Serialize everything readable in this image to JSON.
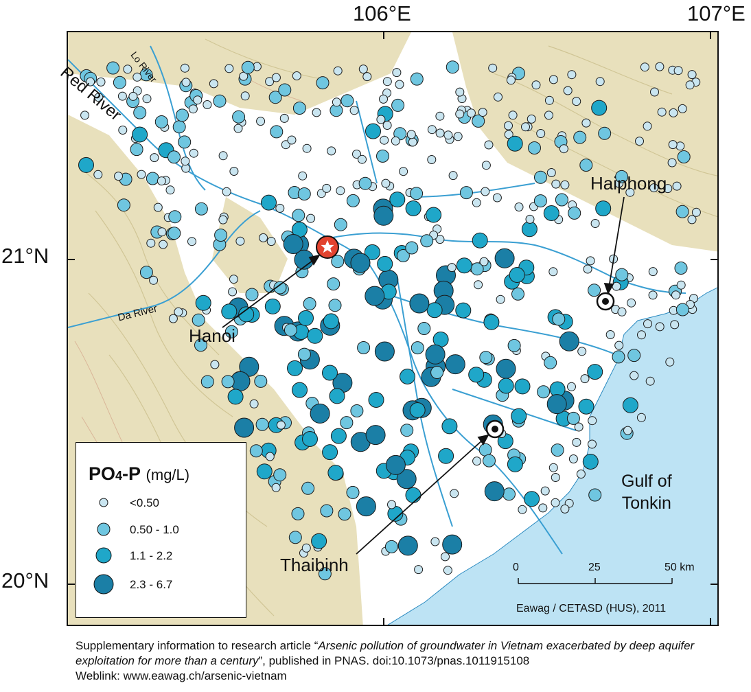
{
  "axes": {
    "lon_labels": [
      "106°E",
      "107°E"
    ],
    "lat_labels": [
      "21°N",
      "20°N"
    ]
  },
  "rivers": {
    "red": "Red River",
    "lo": "Lo River",
    "da": "Da River"
  },
  "cities": {
    "hanoi": "Hanoi",
    "haiphong": "Haiphong",
    "thaibinh": "Thaibinh"
  },
  "sea": {
    "line1": "Gulf of",
    "line2": "Tonkin"
  },
  "legend": {
    "title_main": "PO",
    "title_sub": "4",
    "title_tail": "-P",
    "unit": "(mg/L)",
    "classes": [
      {
        "label": "<0.50",
        "color": "#c9e5f0"
      },
      {
        "label": "0.50 - 1.0",
        "color": "#6fc6e0"
      },
      {
        "label": "1.1 - 2.2",
        "color": "#1fa7c9"
      },
      {
        "label": "2.3 - 6.7",
        "color": "#1b7fa6"
      }
    ]
  },
  "scale_bar": {
    "labels": [
      "0",
      "25",
      "50 km"
    ]
  },
  "credit": "Eawag / CETASD (HUS), 2011",
  "caption": {
    "pre": "Supplementary information to research article “",
    "title": "Arsenic pollution of groundwater in Vietnam exacerbated by deep aquifer exploitation for more than a century",
    "post": "”, published in PNAS. doi:10.1073/pnas.1011915108",
    "weblink": "Weblink: www.eawag.ch/arsenic-vietnam"
  },
  "colors": {
    "sea": "#bde3f4",
    "river": "#3a9fd2",
    "terrain": "#e4dcb2",
    "star": "#e2432f"
  }
}
